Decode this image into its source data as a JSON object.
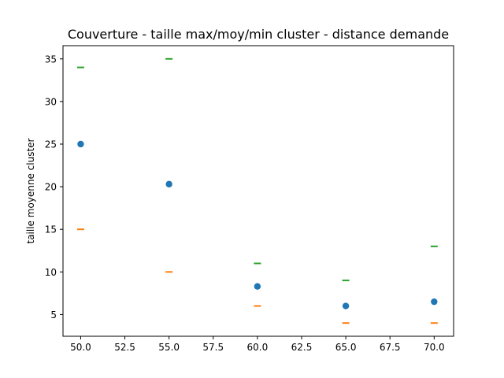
{
  "chart_data": {
    "type": "scatter",
    "title": "Couverture - taille max/moy/min cluster - distance demande",
    "xlabel": "",
    "ylabel": "taille moyenne cluster",
    "xlim": [
      49.0,
      71.1
    ],
    "ylim": [
      2.45,
      36.55
    ],
    "x_ticks": [
      50.0,
      52.5,
      55.0,
      57.5,
      60.0,
      62.5,
      65.0,
      67.5,
      70.0
    ],
    "x_tick_labels": [
      "50.0",
      "52.5",
      "55.0",
      "57.5",
      "60.0",
      "62.5",
      "65.0",
      "67.5",
      "70.0"
    ],
    "y_ticks": [
      5,
      10,
      15,
      20,
      25,
      30,
      35
    ],
    "y_tick_labels": [
      "5",
      "10",
      "15",
      "20",
      "25",
      "30",
      "35"
    ],
    "grid": false,
    "legend": false,
    "x": [
      50,
      55,
      60,
      65,
      70
    ],
    "series": [
      {
        "values": [
          25.0,
          20.3,
          8.3,
          6.0,
          6.5
        ],
        "marker": "circle",
        "color": "#1f77b4"
      },
      {
        "values": [
          15,
          10,
          6,
          4,
          4
        ],
        "marker": "hline",
        "color": "#ff7f0e"
      },
      {
        "values": [
          34,
          35,
          11,
          9,
          13
        ],
        "marker": "hline",
        "color": "#2ca02c"
      }
    ]
  }
}
